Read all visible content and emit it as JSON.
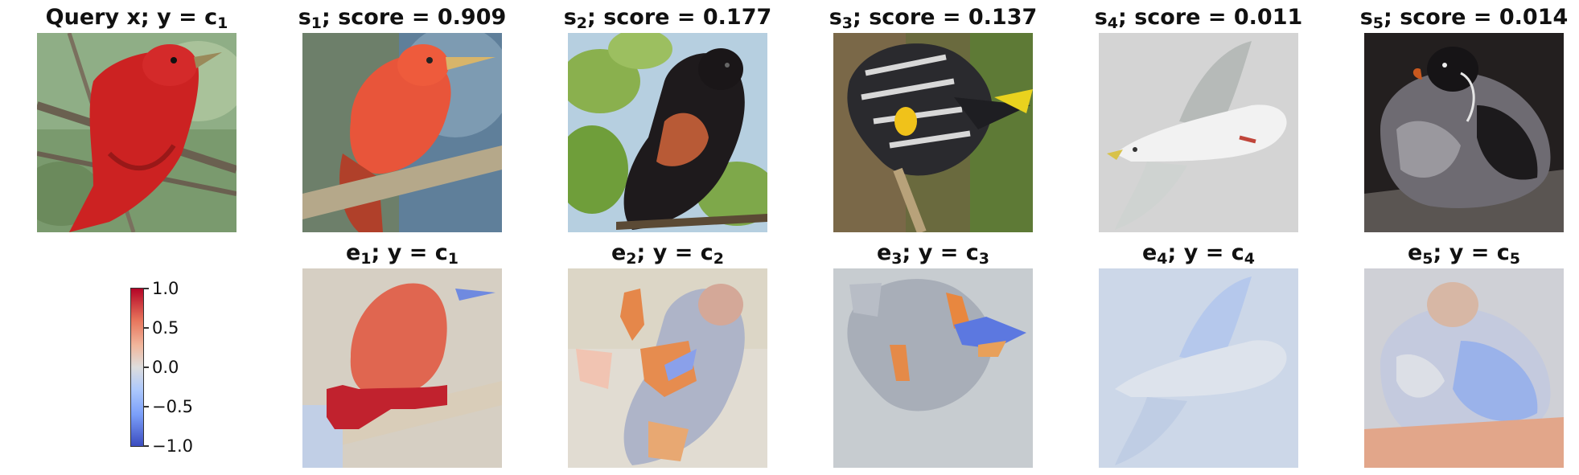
{
  "row1": [
    {
      "id": "query",
      "title": "Query x; y = c",
      "sub": "1",
      "subject": "red summer tanager perched on branch"
    },
    {
      "id": "s1",
      "title_pre": "s",
      "sub": "1",
      "title_post": "; score = 0.909"
    },
    {
      "id": "s2",
      "title_pre": "s",
      "sub": "2",
      "title_post": "; score = 0.177"
    },
    {
      "id": "s3",
      "title_pre": "s",
      "sub": "3",
      "title_post": "; score = 0.137"
    },
    {
      "id": "s4",
      "title_pre": "s",
      "sub": "4",
      "title_post": "; score = 0.011"
    },
    {
      "id": "s5",
      "title_pre": "s",
      "sub": "5",
      "title_post": "; score = 0.014"
    }
  ],
  "row2": [
    {
      "id": "e1",
      "pre": "e",
      "sub1": "1",
      "mid": "; y = c",
      "sub2": "1"
    },
    {
      "id": "e2",
      "pre": "e",
      "sub1": "2",
      "mid": "; y = c",
      "sub2": "2"
    },
    {
      "id": "e3",
      "pre": "e",
      "sub1": "3",
      "mid": "; y = c",
      "sub2": "3"
    },
    {
      "id": "e4",
      "pre": "e",
      "sub1": "4",
      "mid": "; y = c",
      "sub2": "4"
    },
    {
      "id": "e5",
      "pre": "e",
      "sub1": "5",
      "mid": "; y = c",
      "sub2": "5"
    }
  ],
  "colorbar": {
    "colormap": "coolwarm",
    "min": -1.0,
    "max": 1.0,
    "ticks": [
      "1.0",
      "0.5",
      "0.0",
      "−0.5",
      "−1.0"
    ],
    "tick_values": [
      1.0,
      0.5,
      0.0,
      -0.5,
      -1.0
    ],
    "color_top": "#b40426",
    "color_mid": "#dddddd",
    "color_bottom": "#3b4cc0"
  }
}
